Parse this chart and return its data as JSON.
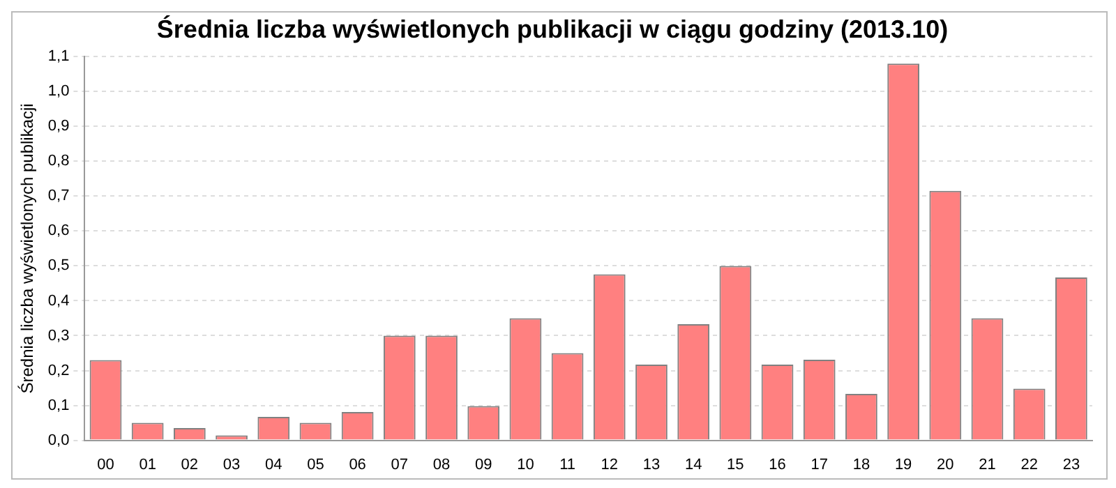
{
  "chart_data": {
    "type": "bar",
    "title": "Średnia liczba wyświetlonych publikacji w ciągu godziny (2013.10)",
    "ylabel": "Średnia liczba wyświetlonych publikacji",
    "categories": [
      "00",
      "01",
      "02",
      "03",
      "04",
      "05",
      "06",
      "07",
      "08",
      "09",
      "10",
      "11",
      "12",
      "13",
      "14",
      "15",
      "16",
      "17",
      "18",
      "19",
      "20",
      "21",
      "22",
      "23"
    ],
    "values": [
      0.23,
      0.05,
      0.035,
      0.014,
      0.067,
      0.05,
      0.081,
      0.3,
      0.3,
      0.098,
      0.35,
      0.25,
      0.476,
      0.217,
      0.333,
      0.5,
      0.217,
      0.231,
      0.133,
      1.08,
      0.715,
      0.35,
      0.148,
      0.467
    ],
    "color": "#ff8080",
    "ylim": [
      0,
      1.1
    ],
    "yticks": [
      {
        "value": 0,
        "label": "0,0"
      },
      {
        "value": 0.1,
        "label": "0,1"
      },
      {
        "value": 0.2,
        "label": "0,2"
      },
      {
        "value": 0.3,
        "label": "0,3"
      },
      {
        "value": 0.4,
        "label": "0,4"
      },
      {
        "value": 0.5,
        "label": "0,5"
      },
      {
        "value": 0.6,
        "label": "0,6"
      },
      {
        "value": 0.7,
        "label": "0,7"
      },
      {
        "value": 0.8,
        "label": "0,8"
      },
      {
        "value": 0.9,
        "label": "0,9"
      },
      {
        "value": 1.0,
        "label": "1,0"
      },
      {
        "value": 1.1,
        "label": "1,1"
      }
    ],
    "grid": "y",
    "legend": false
  }
}
